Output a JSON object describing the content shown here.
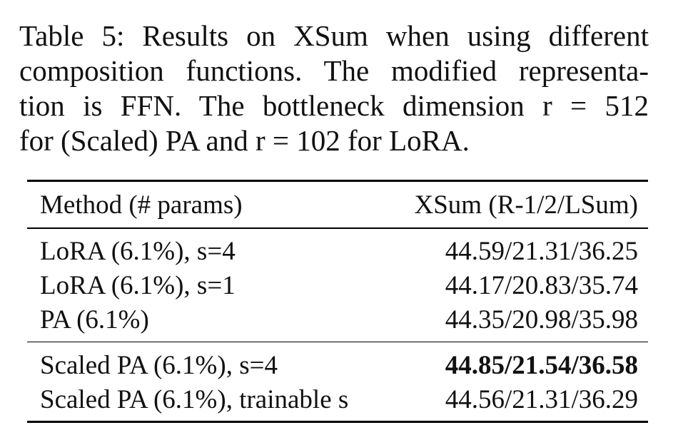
{
  "caption": {
    "lines": [
      "Table 5: Results on XSum when using different",
      "composition functions. The modified representa-",
      "tion is FFN. The bottleneck dimension r = 512",
      "for (Scaled) PA and r = 102 for LoRA."
    ]
  },
  "table": {
    "headers": [
      "Method (# params)",
      "XSum (R-1/2/LSum)"
    ],
    "group1": [
      {
        "method": "LoRA (6.1%), s=4",
        "score": "44.59/21.31/36.25"
      },
      {
        "method": "LoRA (6.1%), s=1",
        "score": "44.17/20.83/35.74"
      },
      {
        "method": "PA (6.1%)",
        "score": "44.35/20.98/35.98"
      }
    ],
    "group2": [
      {
        "method": "Scaled PA (6.1%), s=4",
        "score": "44.85/21.54/36.58",
        "bold": true
      },
      {
        "method": "Scaled PA (6.1%), trainable s",
        "score": "44.56/21.31/36.29"
      }
    ]
  }
}
